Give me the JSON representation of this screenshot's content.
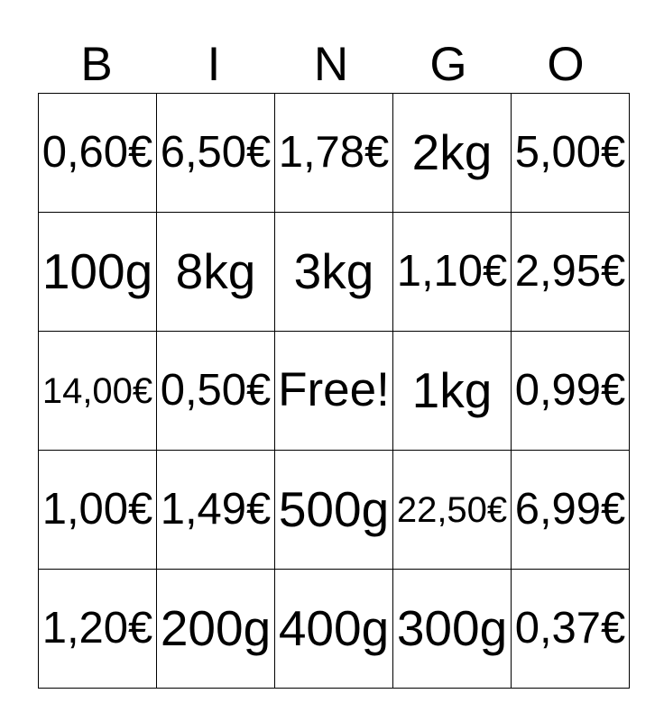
{
  "card": {
    "title": "BINGO",
    "header_letters": [
      "B",
      "I",
      "N",
      "G",
      "O"
    ],
    "grid": {
      "rows": [
        [
          "0,60€",
          "6,50€",
          "1,78€",
          "2kg",
          "5,00€"
        ],
        [
          "100g",
          "8kg",
          "3kg",
          "1,10€",
          "2,95€"
        ],
        [
          "14,00€",
          "0,50€",
          "Free!",
          "1kg",
          "0,99€"
        ],
        [
          "1,00€",
          "1,49€",
          "500g",
          "22,50€",
          "6,99€"
        ],
        [
          "1,20€",
          "200g",
          "400g",
          "300g",
          "0,37€"
        ]
      ],
      "free_cell": {
        "row": 2,
        "col": 2,
        "label": "Free!"
      }
    }
  },
  "colors": {
    "background": "#ffffff",
    "grid_border": "#000000",
    "text": "#000000"
  }
}
